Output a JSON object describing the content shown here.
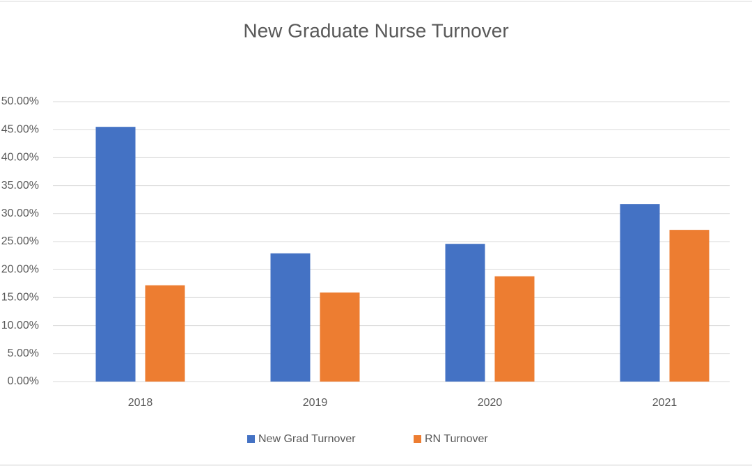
{
  "chart_data": {
    "type": "bar",
    "title": "New Graduate Nurse Turnover",
    "categories": [
      "2018",
      "2019",
      "2020",
      "2021"
    ],
    "series": [
      {
        "name": "New Grad Turnover",
        "color": "#4472c4",
        "values": [
          45.5,
          22.9,
          24.6,
          31.7
        ]
      },
      {
        "name": "RN Turnover",
        "color": "#ed7d31",
        "values": [
          17.2,
          15.9,
          18.8,
          27.1
        ]
      }
    ],
    "ylim": [
      0,
      50
    ],
    "yticks": [
      {
        "value": 0,
        "label": "0.00%"
      },
      {
        "value": 5,
        "label": "5.00%"
      },
      {
        "value": 10,
        "label": "10.00%"
      },
      {
        "value": 15,
        "label": "15.00%"
      },
      {
        "value": 20,
        "label": "20.00%"
      },
      {
        "value": 25,
        "label": "25.00%"
      },
      {
        "value": 30,
        "label": "30.00%"
      },
      {
        "value": 35,
        "label": "35.00%"
      },
      {
        "value": 40,
        "label": "40.00%"
      },
      {
        "value": 45,
        "label": "45.00%"
      },
      {
        "value": 50,
        "label": "50.00%"
      }
    ],
    "grid": true,
    "legend": "bottom"
  }
}
